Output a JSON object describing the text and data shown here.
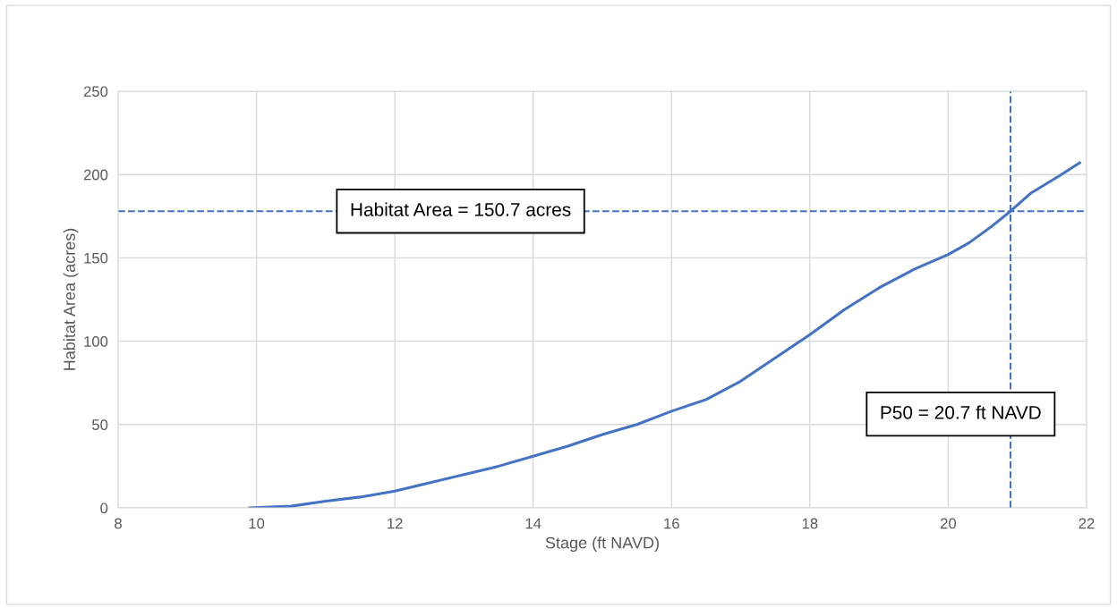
{
  "chart_data": {
    "type": "line",
    "xlabel": "Stage (ft NAVD)",
    "ylabel": "Habitat Area (acres)",
    "x": [
      9.9,
      10.5,
      11,
      11.5,
      12,
      12.5,
      13,
      13.5,
      14,
      14.5,
      15,
      15.5,
      16,
      16.5,
      17,
      17.5,
      18,
      18.5,
      19,
      19.5,
      20,
      20.3,
      20.6,
      20.9,
      21.2,
      21.6,
      21.9
    ],
    "series": [
      {
        "color": "#4472c4",
        "values": [
          0,
          1,
          4,
          6.5,
          10,
          15,
          20,
          25,
          31,
          37,
          44,
          50,
          58,
          65,
          76,
          90,
          104,
          119,
          132,
          143,
          152,
          159,
          168,
          178,
          189,
          199,
          207
        ]
      }
    ],
    "xlim": [
      8,
      22
    ],
    "xticks": [
      8,
      10,
      12,
      14,
      16,
      18,
      20,
      22
    ],
    "ylim": [
      0,
      250
    ],
    "yticks": [
      0,
      50,
      100,
      150,
      200,
      250
    ],
    "grid": true,
    "marker": "none",
    "line_style": "solid",
    "ref_lines": [
      {
        "axis": "y",
        "value": 178,
        "color": "#4472c4",
        "line_style": "dashed"
      },
      {
        "axis": "x",
        "value": 20.9,
        "color": "#4472c4",
        "line_style": "dashed"
      }
    ],
    "annotations": [
      {
        "text": "Habitat Area = 150.7 acres",
        "x": 12.95,
        "y": 178
      },
      "P50 = 20.7 ft NAVD"
    ]
  }
}
